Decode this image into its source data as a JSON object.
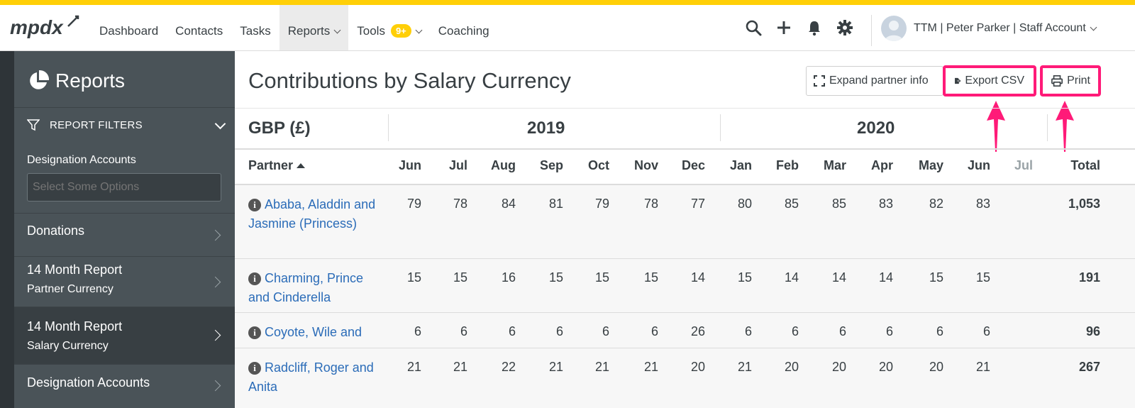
{
  "nav": {
    "logo_text": "mpdx",
    "items": [
      {
        "label": "Dashboard"
      },
      {
        "label": "Contacts"
      },
      {
        "label": "Tasks"
      },
      {
        "label": "Reports"
      },
      {
        "label": "Tools"
      },
      {
        "label": "Coaching"
      }
    ],
    "tools_badge": "9+",
    "account_name": "TTM | Peter Parker | Staff Account",
    "icons": [
      "search-icon",
      "plus-icon",
      "bell-icon",
      "gear-icon"
    ]
  },
  "sidebar": {
    "title": "Reports",
    "filters_label": "REPORT FILTERS",
    "designation_label": "Designation Accounts",
    "designation_placeholder": "Select Some Options",
    "items": [
      {
        "line1": "Donations",
        "line2": ""
      },
      {
        "line1": "14 Month Report",
        "line2": "Partner Currency"
      },
      {
        "line1": "14 Month Report",
        "line2": "Salary Currency"
      },
      {
        "line1": "Designation Accounts",
        "line2": ""
      }
    ],
    "active_item": 2
  },
  "main": {
    "title": "Contributions by Salary Currency",
    "buttons": {
      "expand": "Expand partner info",
      "export": "Export CSV",
      "print": "Print"
    },
    "highlight_color": "#ff1a78",
    "currency": "GBP (£)",
    "years": [
      "2019",
      "2020"
    ],
    "partner_header": "Partner",
    "months": [
      "Jun",
      "Jul",
      "Aug",
      "Sep",
      "Oct",
      "Nov",
      "Dec",
      "Jan",
      "Feb",
      "Mar",
      "Apr",
      "May",
      "Jun",
      "Jul"
    ],
    "total_header": "Total",
    "rows": [
      {
        "partner": "Ababa, Aladdin and Jasmine (Princess)",
        "values": [
          "79",
          "78",
          "84",
          "81",
          "79",
          "78",
          "77",
          "80",
          "85",
          "85",
          "83",
          "82",
          "83",
          ""
        ],
        "total": "1,053"
      },
      {
        "partner": "Charming, Prince and Cinderella",
        "values": [
          "15",
          "15",
          "16",
          "15",
          "15",
          "15",
          "14",
          "15",
          "14",
          "14",
          "14",
          "15",
          "15",
          ""
        ],
        "total": "191"
      },
      {
        "partner": "Coyote, Wile and",
        "values": [
          "6",
          "6",
          "6",
          "6",
          "6",
          "6",
          "26",
          "6",
          "6",
          "6",
          "6",
          "6",
          "6",
          ""
        ],
        "total": "96"
      },
      {
        "partner": "Radcliff, Roger and Anita",
        "values": [
          "21",
          "21",
          "22",
          "21",
          "21",
          "21",
          "20",
          "21",
          "20",
          "20",
          "20",
          "20",
          "21",
          ""
        ],
        "total": "267"
      }
    ]
  }
}
